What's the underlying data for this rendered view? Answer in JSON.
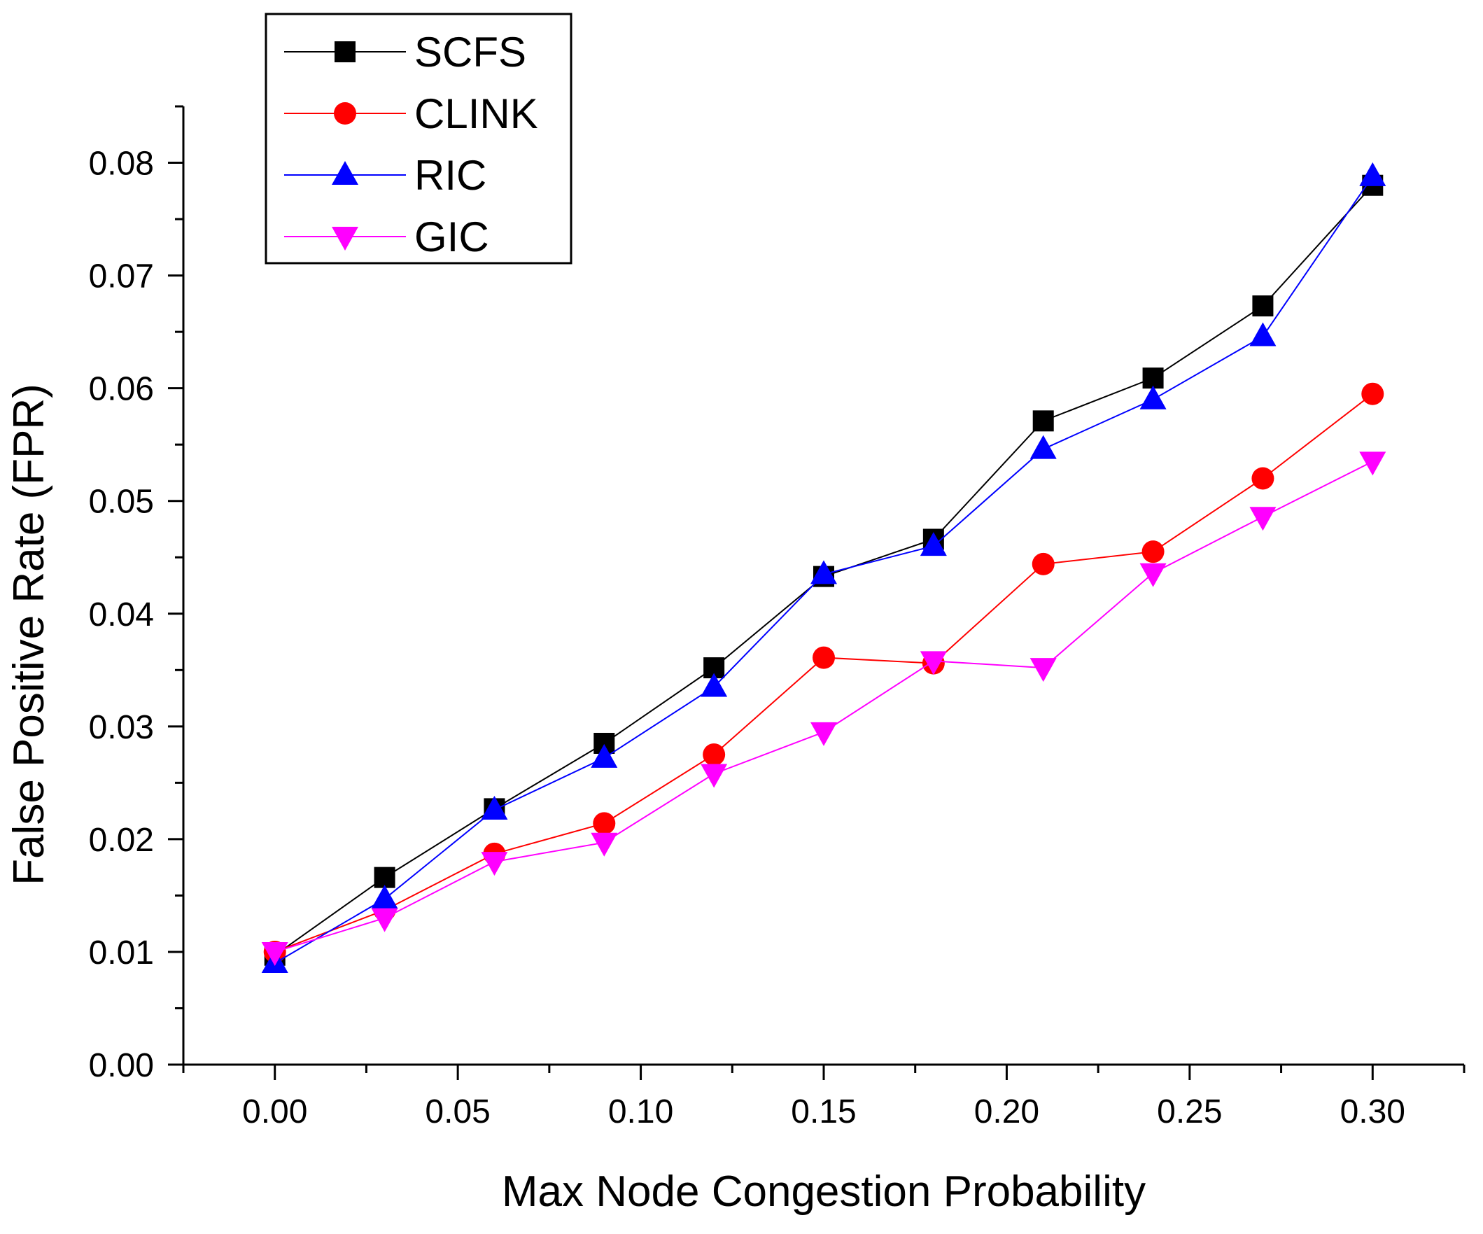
{
  "chart_data": {
    "type": "line",
    "title": "",
    "xlabel": "Max Node Congestion Probability",
    "ylabel": "False Positive Rate (FPR)",
    "xlim": [
      -0.025,
      0.325
    ],
    "ylim": [
      0.0,
      0.085
    ],
    "xticks": [
      "0.00",
      "0.05",
      "0.10",
      "0.15",
      "0.20",
      "0.25",
      "0.30"
    ],
    "yticks": [
      "0.00",
      "0.01",
      "0.02",
      "0.03",
      "0.04",
      "0.05",
      "0.06",
      "0.07",
      "0.08"
    ],
    "grid": false,
    "legend_position": "top-left",
    "x": [
      0.0,
      0.03,
      0.06,
      0.09,
      0.12,
      0.15,
      0.18,
      0.21,
      0.24,
      0.27,
      0.3
    ],
    "series": [
      {
        "name": "SCFS",
        "color": "#000000",
        "marker": "square",
        "values": [
          0.0097,
          0.0166,
          0.0227,
          0.0285,
          0.0352,
          0.0433,
          0.0466,
          0.0571,
          0.0609,
          0.0673,
          0.078
        ]
      },
      {
        "name": "CLINK",
        "color": "#ff0000",
        "marker": "circle",
        "values": [
          0.01,
          0.0137,
          0.0187,
          0.0214,
          0.0275,
          0.0361,
          0.0356,
          0.0444,
          0.0455,
          0.052,
          0.0595
        ]
      },
      {
        "name": "RIC",
        "color": "#0000ff",
        "marker": "triangle-up",
        "values": [
          0.009,
          0.0147,
          0.0226,
          0.0272,
          0.0335,
          0.0435,
          0.046,
          0.0546,
          0.059,
          0.0646,
          0.0788
        ]
      },
      {
        "name": "GIC",
        "color": "#ff00ff",
        "marker": "triangle-down",
        "values": [
          0.01,
          0.013,
          0.018,
          0.0197,
          0.0258,
          0.0295,
          0.0358,
          0.0352,
          0.0436,
          0.0486,
          0.0535
        ]
      }
    ]
  }
}
